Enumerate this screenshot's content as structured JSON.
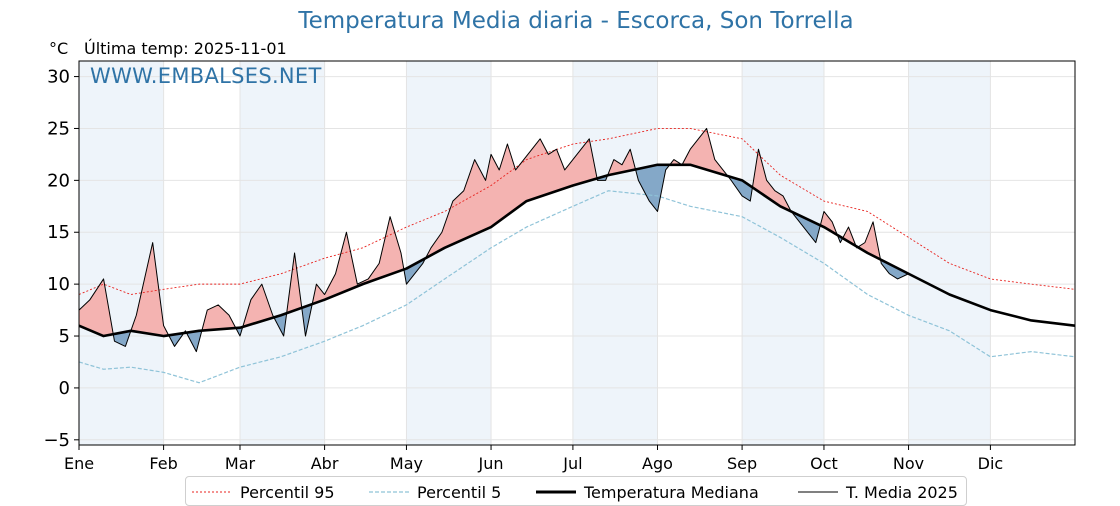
{
  "header": {
    "title": "Temperatura Media diaria - Escorca, Son Torrella",
    "unit": "°C",
    "last_temp": "Última temp: 2025-11-01",
    "watermark": "WWW.EMBALSES.NET"
  },
  "colors": {
    "title": "#2f73a6",
    "p95": "#e8231f",
    "p5": "#8fc3d8",
    "median": "#000000",
    "current": "#000000",
    "above_fill": "#f4b3b1",
    "below_fill": "#84a8c8",
    "month_shade": "#eef4fa"
  },
  "legend": [
    {
      "key": "p95",
      "label": "Percentil 95"
    },
    {
      "key": "p5",
      "label": "Percentil 5"
    },
    {
      "key": "median",
      "label": "Temperatura Mediana"
    },
    {
      "key": "current",
      "label": "T. Media 2025"
    }
  ],
  "chart_data": {
    "type": "line",
    "title": "Temperatura Media diaria - Escorca, Son Torrella",
    "ylabel": "°C",
    "ylim": [
      -5.5,
      31.5
    ],
    "yticks": [
      -5,
      0,
      5,
      10,
      15,
      20,
      25,
      30
    ],
    "xlim": [
      1,
      366
    ],
    "x_unit": "day of year",
    "month_ticks": [
      {
        "label": "Ene",
        "day": 1
      },
      {
        "label": "Feb",
        "day": 32
      },
      {
        "label": "Mar",
        "day": 60
      },
      {
        "label": "Abr",
        "day": 91
      },
      {
        "label": "May",
        "day": 121
      },
      {
        "label": "Jun",
        "day": 152
      },
      {
        "label": "Jul",
        "day": 182
      },
      {
        "label": "Ago",
        "day": 213
      },
      {
        "label": "Sep",
        "day": 244
      },
      {
        "label": "Oct",
        "day": 274
      },
      {
        "label": "Nov",
        "day": 305
      },
      {
        "label": "Dic",
        "day": 335
      }
    ],
    "grid": true,
    "legend_position": "bottom",
    "series": [
      {
        "name": "Percentil 95",
        "key": "p95",
        "x": [
          1,
          10,
          20,
          32,
          45,
          60,
          75,
          91,
          105,
          121,
          135,
          152,
          165,
          182,
          195,
          213,
          225,
          244,
          258,
          274,
          290,
          305,
          320,
          335,
          350,
          366
        ],
        "y": [
          9,
          10,
          9,
          9.5,
          10,
          10,
          11,
          12.5,
          13.5,
          15.5,
          17,
          19.5,
          22,
          23.5,
          24,
          25,
          25,
          24,
          20.5,
          18,
          17,
          14.5,
          12,
          10.5,
          10,
          9.5
        ]
      },
      {
        "name": "Percentil 5",
        "key": "p5",
        "x": [
          1,
          10,
          20,
          32,
          45,
          60,
          75,
          91,
          105,
          121,
          135,
          152,
          165,
          182,
          195,
          213,
          225,
          244,
          258,
          274,
          290,
          305,
          320,
          335,
          350,
          366
        ],
        "y": [
          2.5,
          1.8,
          2,
          1.5,
          0.5,
          2,
          3,
          4.5,
          6,
          8,
          10.5,
          13.5,
          15.5,
          17.5,
          19,
          18.5,
          17.5,
          16.5,
          14.5,
          12,
          9,
          7,
          5.5,
          3,
          3.5,
          3
        ]
      },
      {
        "name": "Temperatura Mediana",
        "key": "median",
        "x": [
          1,
          10,
          20,
          32,
          45,
          60,
          75,
          91,
          105,
          121,
          135,
          152,
          165,
          182,
          195,
          213,
          225,
          244,
          258,
          274,
          290,
          305,
          320,
          335,
          350,
          366
        ],
        "y": [
          6,
          5,
          5.5,
          5,
          5.5,
          5.8,
          7,
          8.5,
          10,
          11.5,
          13.5,
          15.5,
          18,
          19.5,
          20.5,
          21.5,
          21.5,
          20,
          17.5,
          15.5,
          13,
          11,
          9,
          7.5,
          6.5,
          6
        ]
      },
      {
        "name": "T. Media 2025",
        "key": "current",
        "x": [
          1,
          5,
          10,
          14,
          18,
          22,
          25,
          28,
          32,
          36,
          40,
          44,
          48,
          52,
          56,
          60,
          64,
          68,
          72,
          76,
          80,
          84,
          88,
          91,
          95,
          99,
          103,
          107,
          111,
          115,
          119,
          121,
          124,
          127,
          130,
          134,
          138,
          142,
          146,
          150,
          152,
          155,
          158,
          161,
          164,
          167,
          170,
          173,
          176,
          179,
          182,
          185,
          188,
          191,
          194,
          197,
          200,
          203,
          206,
          210,
          213,
          216,
          219,
          222,
          225,
          228,
          231,
          234,
          237,
          240,
          244,
          247,
          250,
          253,
          256,
          259,
          262,
          265,
          268,
          271,
          274,
          277,
          280,
          283,
          286,
          289,
          292,
          295,
          298,
          301,
          305
        ],
        "y": [
          7.5,
          8.5,
          10.5,
          4.5,
          4,
          7,
          10.5,
          14,
          6,
          4,
          5.5,
          3.5,
          7.5,
          8,
          7,
          5,
          8.5,
          10,
          7,
          5,
          13,
          5,
          10,
          9,
          11,
          15,
          10,
          10.5,
          12,
          16.5,
          13,
          10,
          11,
          12,
          13.5,
          15,
          18,
          19,
          22,
          20,
          22.5,
          21,
          23.5,
          21,
          22,
          23,
          24,
          22.5,
          23,
          21,
          22,
          23,
          24,
          20,
          20,
          22,
          21.5,
          23,
          20,
          18,
          17,
          21,
          22,
          21.5,
          23,
          24,
          25,
          22,
          21,
          20,
          18.5,
          18,
          23,
          20,
          19,
          18.5,
          17,
          16,
          15,
          14,
          17,
          16,
          14,
          15.5,
          13.5,
          14,
          16,
          12,
          11,
          10.5,
          11
        ]
      }
    ]
  }
}
